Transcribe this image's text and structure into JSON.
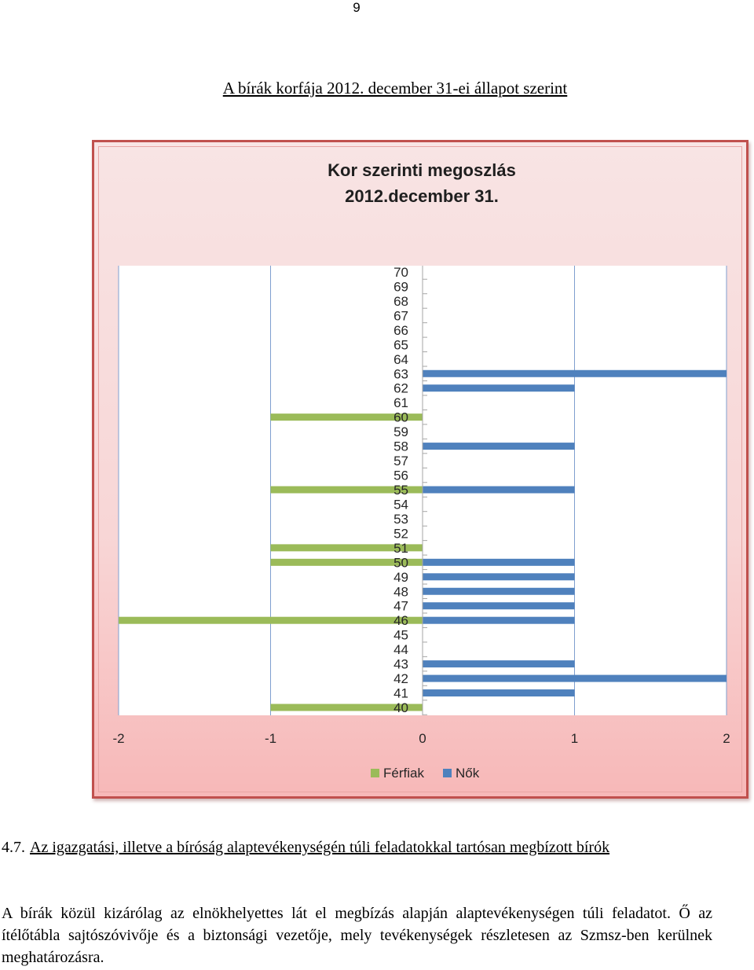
{
  "page": {
    "number": "9",
    "title": "A bírák korfája 2012. december 31-ei állapot szerint"
  },
  "colors": {
    "frame_border": "#c0504d",
    "frame_fill_top": "#f8e4e4",
    "frame_fill_bottom": "#f7b8b8",
    "plot_background": "#ffffff",
    "men_bar": "#9bbb59",
    "women_bar": "#4f81bd",
    "gridline": "#4f81bd"
  },
  "chart_data": {
    "type": "bar",
    "orientation": "horizontal",
    "title_lines": [
      "Kor szerinti megoszlás",
      "2012.december 31."
    ],
    "categories": [
      40,
      41,
      42,
      43,
      44,
      45,
      46,
      47,
      48,
      49,
      50,
      51,
      52,
      53,
      54,
      55,
      56,
      57,
      58,
      59,
      60,
      61,
      62,
      63,
      64,
      65,
      66,
      67,
      68,
      69,
      70
    ],
    "series": [
      {
        "name": "Férfiak",
        "color": "#9bbb59",
        "values": [
          -1,
          0,
          0,
          0,
          0,
          0,
          -2,
          0,
          0,
          0,
          -1,
          -1,
          0,
          0,
          0,
          -1,
          0,
          0,
          0,
          0,
          -1,
          0,
          0,
          0,
          0,
          0,
          0,
          0,
          0,
          0,
          0
        ]
      },
      {
        "name": "Nők",
        "color": "#4f81bd",
        "values": [
          0,
          1,
          2,
          1,
          0,
          0,
          1,
          1,
          1,
          1,
          1,
          0,
          0,
          0,
          0,
          1,
          0,
          0,
          1,
          0,
          0,
          0,
          1,
          2,
          0,
          0,
          0,
          0,
          0,
          0,
          0
        ]
      }
    ],
    "xlim": [
      -2,
      2
    ],
    "x_ticks": [
      "-2",
      "-1",
      "0",
      "1",
      "2"
    ],
    "vertical_gridlines": true,
    "legend_position": "bottom"
  },
  "section": {
    "number": "4.7.",
    "heading": "Az igazgatási, illetve a bíróság alaptevékenységén túli feladatokkal tartósan megbízott bírók",
    "paragraph": "A bírák közül kizárólag az elnökhelyettes lát el megbízás alapján alaptevékenységen túli feladatot. Ő az ítélőtábla sajtószóvivője és a biztonsági vezetője, mely tevékenységek részletesen az Szmsz-ben kerülnek meghatározásra."
  }
}
